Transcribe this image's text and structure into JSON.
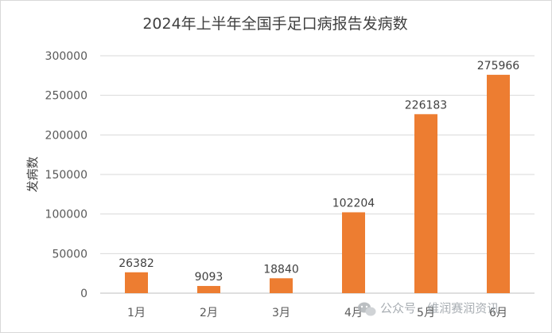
{
  "chart_data": {
    "type": "bar",
    "title": "2024年上半年全国手足口病报告发病数",
    "ylabel": "发病数",
    "xlabel": "",
    "categories": [
      "1月",
      "2月",
      "3月",
      "4月",
      "5月",
      "6月"
    ],
    "values": [
      26382,
      9093,
      18840,
      102204,
      226183,
      275966
    ],
    "ylim": [
      0,
      300000
    ],
    "yticks": [
      "300000",
      "250000",
      "200000",
      "150000",
      "100000",
      "50000",
      "0"
    ],
    "bar_color": "#ED7D31",
    "grid": true,
    "legend": "none"
  },
  "watermark": {
    "text": "公众号 · 维润赛润资讯",
    "icon": "wechat-icon"
  }
}
